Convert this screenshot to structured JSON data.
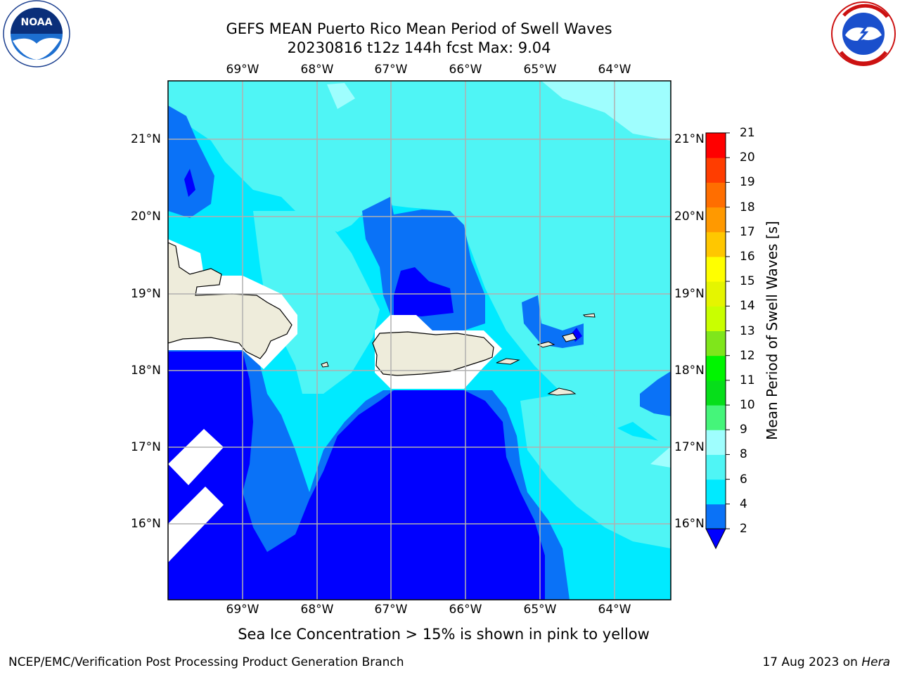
{
  "header": {
    "title_line1": "GEFS MEAN Puerto Rico Mean Period of Swell Waves",
    "title_line2": "20230816 t12z 144h fcst   Max: 9.04"
  },
  "map": {
    "lon_labels": [
      "69°W",
      "68°W",
      "67°W",
      "66°W",
      "65°W",
      "64°W"
    ],
    "lat_labels": [
      "21°N",
      "20°N",
      "19°N",
      "18°N",
      "17°N",
      "16°N"
    ]
  },
  "colorbar": {
    "label": "Mean Period of Swell Waves [s]",
    "ticks": [
      "2",
      "4",
      "6",
      "8",
      "9",
      "10",
      "11",
      "12",
      "13",
      "14",
      "15",
      "16",
      "17",
      "18",
      "19",
      "20",
      "21"
    ],
    "colors": [
      "#0000ff",
      "#0a72f7",
      "#00eaff",
      "#4ff5f5",
      "#9ffefe",
      "#45f57a",
      "#06de1a",
      "#00f500",
      "#7fe61b",
      "#c9ff00",
      "#e5f500",
      "#ffff00",
      "#ffc700",
      "#ff9900",
      "#ff6e00",
      "#ff3d00",
      "#ff0000"
    ]
  },
  "notes": {
    "sea_ice": "Sea Ice Concentration > 15% is shown in pink to yellow"
  },
  "footer": {
    "left": "NCEP/EMC/Verification Post Processing Product Generation Branch",
    "date": "17 Aug 2023 on ",
    "machine": "Hera"
  },
  "colors": {
    "land": "#eeecdb",
    "blue_2_4": "#0000ff",
    "blue_4_6": "#0a72f7",
    "cyan_6_8": "#00eaff",
    "cyan_8_9": "#4ff5f5",
    "cyan_9_10": "#9ffefe",
    "grid": "#b0b0b0"
  },
  "logos": {
    "left": "NOAA",
    "right": "NATIONAL WEATHER SERVICE"
  }
}
